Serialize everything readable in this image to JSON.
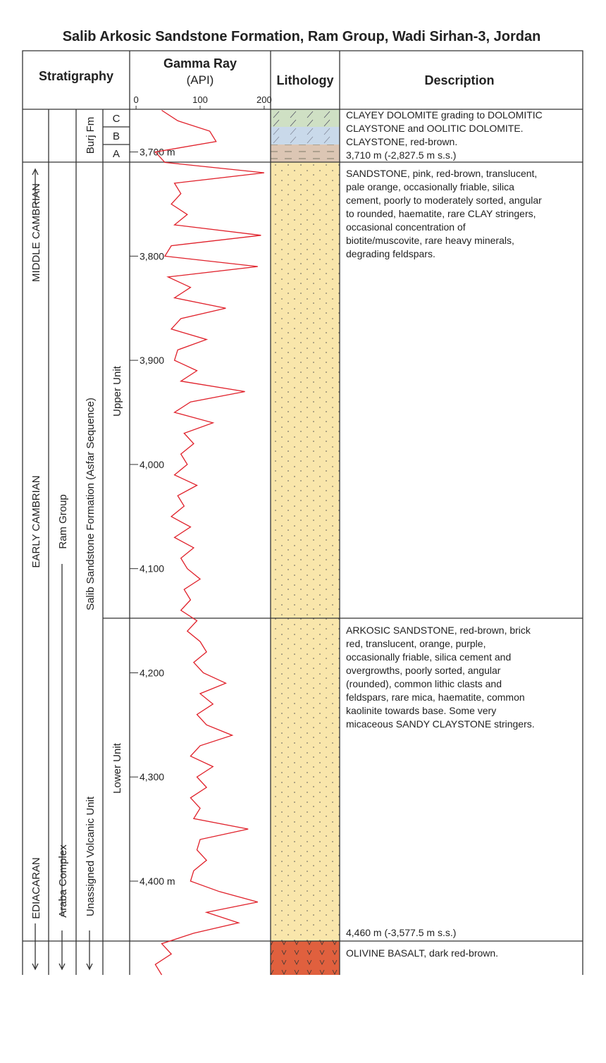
{
  "title": "Salib Arkosic Sandstone Formation, Ram Group, Wadi Sirhan-3, Jordan",
  "header": {
    "stratigraphy": "Stratigraphy",
    "gamma_title": "Gamma Ray",
    "gamma_unit": "(API)",
    "lithology": "Lithology",
    "description": "Description"
  },
  "stratigraphy": {
    "eras": [
      "MIDDLE CAMBRIAN",
      "EARLY CAMBRIAN",
      "EDIACARAN"
    ],
    "groups": [
      "Ram Group",
      "Araba Complex"
    ],
    "formations": [
      "Burj Fm",
      "Salib Sandstone Formation (Asfar Sequence)",
      "Unassigned Volcanic Unit"
    ],
    "units": [
      "Upper Unit",
      "Lower Unit"
    ],
    "members": [
      "C",
      "B",
      "A"
    ]
  },
  "gamma_ray": {
    "type": "line",
    "color": "#e0202a",
    "xlim": [
      -10,
      210
    ],
    "xticks": [
      0,
      100,
      200
    ],
    "ylim": [
      3659,
      4490
    ],
    "depth_ticks": [
      {
        "value": 3700,
        "label": "3,700 m"
      },
      {
        "value": 3800,
        "label": "3,800"
      },
      {
        "value": 3900,
        "label": "3,900"
      },
      {
        "value": 4000,
        "label": "4,000"
      },
      {
        "value": 4100,
        "label": "4,100"
      },
      {
        "value": 4200,
        "label": "4,200"
      },
      {
        "value": 4300,
        "label": "4,300"
      },
      {
        "value": 4400,
        "label": "4,400 m"
      }
    ],
    "depths": [
      3660,
      3670,
      3680,
      3690,
      3700,
      3710,
      3720,
      3730,
      3740,
      3750,
      3760,
      3770,
      3780,
      3790,
      3800,
      3810,
      3820,
      3830,
      3840,
      3850,
      3860,
      3870,
      3880,
      3890,
      3900,
      3910,
      3920,
      3930,
      3940,
      3950,
      3960,
      3970,
      3980,
      3990,
      4000,
      4010,
      4020,
      4030,
      4040,
      4050,
      4060,
      4070,
      4080,
      4090,
      4100,
      4110,
      4120,
      4130,
      4140,
      4150,
      4160,
      4170,
      4180,
      4190,
      4200,
      4210,
      4220,
      4230,
      4240,
      4250,
      4260,
      4270,
      4280,
      4290,
      4300,
      4310,
      4320,
      4330,
      4340,
      4350,
      4360,
      4370,
      4380,
      4390,
      4400,
      4410,
      4420,
      4430,
      4440,
      4450,
      4460,
      4470,
      4480,
      4490
    ],
    "values": [
      40,
      65,
      115,
      125,
      30,
      45,
      200,
      60,
      70,
      55,
      80,
      60,
      195,
      55,
      45,
      190,
      50,
      85,
      60,
      140,
      70,
      55,
      110,
      65,
      60,
      95,
      70,
      170,
      85,
      60,
      120,
      75,
      90,
      70,
      80,
      60,
      95,
      65,
      75,
      55,
      85,
      60,
      90,
      70,
      80,
      100,
      75,
      85,
      70,
      95,
      80,
      100,
      110,
      90,
      105,
      140,
      100,
      120,
      95,
      110,
      150,
      100,
      85,
      120,
      95,
      110,
      85,
      100,
      90,
      175,
      100,
      95,
      110,
      90,
      85,
      130,
      190,
      110,
      160,
      90,
      40,
      55,
      30,
      40
    ]
  },
  "descriptions": [
    {
      "lines": [
        "CLAYEY DOLOMITE grading to DOLOMITIC",
        "CLAYSTONE and OOLITIC DOLOMITE.",
        "CLAYSTONE, red-brown.",
        "3,710 m (-2,827.5 m s.s.)"
      ]
    },
    {
      "lines": [
        "SANDSTONE, pink, red-brown, translucent,",
        "pale orange, occasionally friable, silica",
        "cement, poorly to moderately sorted, angular",
        "to rounded, haematite, rare CLAY stringers,",
        "occasional concentration of",
        "biotite/muscovite, rare heavy minerals,",
        "degrading feldspars."
      ]
    },
    {
      "lines": [
        "ARKOSIC SANDSTONE, red-brown, brick",
        "red, translucent, orange, purple,",
        "occasionally friable, silica cement and",
        "overgrowths, poorly sorted, angular",
        "(rounded), common lithic clasts and",
        "feldspars, rare mica, haematite, common",
        "kaolinite towards base. Some very",
        "micaceous SANDY CLAYSTONE stringers."
      ]
    },
    {
      "lines": [
        "4,460 m (-3,577.5 m s.s.)"
      ]
    },
    {
      "lines": [
        "OLIVINE BASALT, dark red-brown."
      ]
    }
  ]
}
